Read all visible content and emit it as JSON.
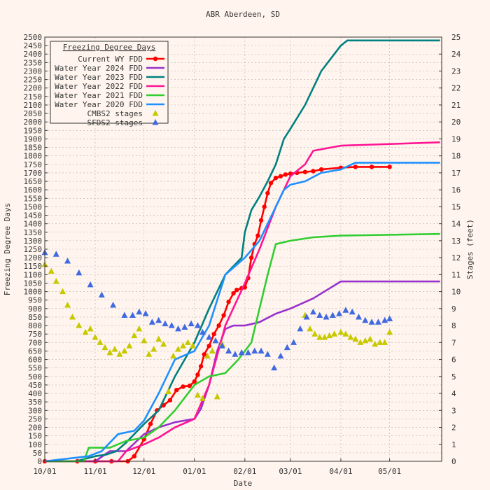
{
  "chart_data": {
    "type": "line",
    "title": "ABR Aberdeen, SD",
    "xlabel": "Date",
    "ylabel": "Freezing Degree Days",
    "y2label": "Stages (feet)",
    "x_ticks": [
      "10/01",
      "11/01",
      "12/01",
      "01/01",
      "02/01",
      "03/01",
      "04/01",
      "05/01"
    ],
    "ylim": [
      0,
      2500
    ],
    "y2lim": [
      0,
      25
    ],
    "grid": true,
    "legend": {
      "title": "Freezing Degree Days",
      "placement": "top-left"
    },
    "colors": {
      "current": "#ff0000",
      "wy2024": "#9932cc",
      "wy2023": "#008080",
      "wy2022": "#ff1493",
      "wy2021": "#32cd32",
      "wy2020": "#1e90ff",
      "cmbs2": "#c8c800",
      "sfds2": "#4169e1"
    },
    "series": [
      {
        "name": "Current WY FDD",
        "key": "current",
        "style": "line-marker",
        "x": [
          "10/01",
          "10/21",
          "11/01",
          "11/11",
          "11/21",
          "11/25",
          "12/01",
          "12/05",
          "12/09",
          "12/13",
          "12/17",
          "12/21",
          "12/25",
          "12/29",
          "01/01",
          "01/03",
          "01/05",
          "01/07",
          "01/10",
          "01/13",
          "01/16",
          "01/19",
          "01/22",
          "01/25",
          "01/27",
          "01/30",
          "02/01",
          "02/03",
          "02/05",
          "02/07",
          "02/09",
          "02/11",
          "02/13",
          "02/15",
          "02/17",
          "02/20",
          "02/23",
          "02/26",
          "03/01",
          "03/05",
          "03/10",
          "03/15",
          "03/20",
          "04/01",
          "04/10",
          "04/20",
          "05/01"
        ],
        "values": [
          0,
          0,
          0,
          0,
          0,
          30,
          130,
          220,
          300,
          330,
          360,
          420,
          440,
          445,
          470,
          510,
          560,
          630,
          680,
          750,
          800,
          860,
          940,
          990,
          1010,
          1020,
          1025,
          1080,
          1200,
          1280,
          1330,
          1420,
          1500,
          1580,
          1640,
          1670,
          1680,
          1690,
          1695,
          1700,
          1705,
          1710,
          1720,
          1730,
          1735,
          1735,
          1735
        ]
      },
      {
        "name": "Water Year 2024 FDD",
        "key": "wy2024",
        "style": "line",
        "x": [
          "10/01",
          "11/01",
          "11/10",
          "11/20",
          "12/01",
          "12/10",
          "12/20",
          "01/01",
          "01/05",
          "01/10",
          "01/15",
          "01/20",
          "01/25",
          "02/01",
          "02/10",
          "02/20",
          "03/01",
          "03/15",
          "04/01",
          "04/10",
          "05/01",
          "06/01"
        ],
        "values": [
          0,
          0,
          60,
          60,
          160,
          200,
          230,
          250,
          310,
          450,
          650,
          780,
          800,
          800,
          820,
          870,
          900,
          960,
          1060,
          1060,
          1060,
          1060
        ]
      },
      {
        "name": "Water Year 2023 FDD",
        "key": "wy2023",
        "style": "line",
        "x": [
          "10/01",
          "10/20",
          "11/01",
          "11/08",
          "11/14",
          "11/20",
          "11/25",
          "12/01",
          "12/10",
          "12/20",
          "01/01",
          "01/10",
          "01/20",
          "01/30",
          "02/01",
          "02/05",
          "02/10",
          "02/15",
          "02/20",
          "02/25",
          "03/01",
          "03/10",
          "03/20",
          "04/01",
          "04/05",
          "06/01"
        ],
        "values": [
          0,
          0,
          30,
          40,
          60,
          110,
          160,
          220,
          300,
          500,
          700,
          900,
          1100,
          1200,
          1350,
          1480,
          1560,
          1650,
          1750,
          1900,
          1960,
          2100,
          2300,
          2450,
          2480,
          2480
        ]
      },
      {
        "name": "Water Year 2022 FDD",
        "key": "wy2022",
        "style": "line",
        "x": [
          "10/01",
          "11/01",
          "11/15",
          "11/20",
          "12/01",
          "12/10",
          "12/20",
          "01/01",
          "01/10",
          "01/20",
          "02/01",
          "02/10",
          "02/20",
          "03/01",
          "03/10",
          "03/15",
          "04/01",
          "06/01"
        ],
        "values": [
          0,
          0,
          0,
          60,
          100,
          140,
          200,
          250,
          450,
          800,
          1050,
          1250,
          1500,
          1680,
          1750,
          1830,
          1860,
          1880
        ]
      },
      {
        "name": "Water Year 2021 FDD",
        "key": "wy2021",
        "style": "line",
        "x": [
          "10/01",
          "10/25",
          "10/28",
          "11/10",
          "11/20",
          "12/01",
          "12/10",
          "12/20",
          "01/01",
          "01/10",
          "01/20",
          "01/28",
          "02/01",
          "02/05",
          "02/10",
          "02/15",
          "02/20",
          "03/01",
          "03/15",
          "04/01",
          "06/01"
        ],
        "values": [
          0,
          0,
          80,
          80,
          120,
          140,
          200,
          300,
          450,
          500,
          520,
          600,
          650,
          700,
          900,
          1100,
          1280,
          1300,
          1320,
          1330,
          1340
        ]
      },
      {
        "name": "Water Year 2020 FDD",
        "key": "wy2020",
        "style": "line",
        "x": [
          "10/01",
          "10/28",
          "11/05",
          "11/15",
          "11/25",
          "12/01",
          "12/10",
          "12/20",
          "01/01",
          "01/10",
          "01/20",
          "02/01",
          "02/10",
          "02/20",
          "02/25",
          "03/01",
          "03/10",
          "03/20",
          "04/01",
          "04/10",
          "06/01"
        ],
        "values": [
          0,
          30,
          60,
          160,
          180,
          240,
          400,
          600,
          650,
          800,
          1100,
          1200,
          1300,
          1500,
          1600,
          1630,
          1650,
          1700,
          1720,
          1760,
          1760
        ]
      },
      {
        "name": "CMBS2 stages",
        "key": "cmbs2",
        "style": "triangle",
        "axis": "y2",
        "x": [
          "10/01",
          "10/05",
          "10/08",
          "10/12",
          "10/15",
          "10/18",
          "10/22",
          "10/26",
          "10/29",
          "11/01",
          "11/04",
          "11/07",
          "11/10",
          "11/13",
          "11/16",
          "11/19",
          "11/22",
          "11/25",
          "11/28",
          "12/01",
          "12/04",
          "12/07",
          "12/10",
          "12/13",
          "12/16",
          "12/19",
          "12/22",
          "12/25",
          "12/28",
          "12/31",
          "01/03",
          "01/06",
          "01/09",
          "01/12",
          "01/15",
          "01/18",
          "03/10",
          "03/13",
          "03/16",
          "03/19",
          "03/22",
          "03/25",
          "03/28",
          "04/01",
          "04/04",
          "04/07",
          "04/10",
          "04/13",
          "04/16",
          "04/19",
          "04/22",
          "04/25",
          "04/28",
          "05/01"
        ],
        "values": [
          11.6,
          11.2,
          10.6,
          10.0,
          9.2,
          8.5,
          8.0,
          7.6,
          7.8,
          7.3,
          7.0,
          6.7,
          6.4,
          6.6,
          6.3,
          6.5,
          6.8,
          7.4,
          7.8,
          7.1,
          6.3,
          6.6,
          7.2,
          6.9,
          4.1,
          6.2,
          6.6,
          6.8,
          7.0,
          6.8,
          3.9,
          3.7,
          6.2,
          6.5,
          3.8,
          6.9,
          8.6,
          7.8,
          7.5,
          7.3,
          7.3,
          7.4,
          7.5,
          7.6,
          7.5,
          7.3,
          7.2,
          7.0,
          7.1,
          7.2,
          6.9,
          7.0,
          7.0,
          7.6
        ]
      },
      {
        "name": "SFDS2 stages",
        "key": "sfds2",
        "style": "triangle",
        "axis": "y2",
        "x": [
          "10/01",
          "10/08",
          "10/15",
          "10/22",
          "10/29",
          "11/05",
          "11/12",
          "11/19",
          "11/24",
          "11/28",
          "12/02",
          "12/06",
          "12/10",
          "12/14",
          "12/18",
          "12/22",
          "12/26",
          "12/30",
          "01/03",
          "01/06",
          "01/10",
          "01/14",
          "01/18",
          "01/22",
          "01/26",
          "01/30",
          "02/03",
          "02/07",
          "02/11",
          "02/15",
          "02/19",
          "02/23",
          "02/27",
          "03/03",
          "03/07",
          "03/11",
          "03/15",
          "03/19",
          "03/23",
          "03/27",
          "03/31",
          "04/04",
          "04/08",
          "04/12",
          "04/16",
          "04/20",
          "04/24",
          "04/28",
          "05/01"
        ],
        "values": [
          12.3,
          12.2,
          11.8,
          11.1,
          10.4,
          9.8,
          9.2,
          8.6,
          8.6,
          8.8,
          8.7,
          8.2,
          8.3,
          8.1,
          8.0,
          7.8,
          7.9,
          8.1,
          8.0,
          7.6,
          7.3,
          7.1,
          6.8,
          6.5,
          6.3,
          6.4,
          6.4,
          6.5,
          6.5,
          6.3,
          5.5,
          6.2,
          6.7,
          7.0,
          7.8,
          8.5,
          8.8,
          8.6,
          8.5,
          8.6,
          8.7,
          8.9,
          8.8,
          8.5,
          8.3,
          8.2,
          8.2,
          8.3,
          8.4
        ]
      }
    ]
  }
}
